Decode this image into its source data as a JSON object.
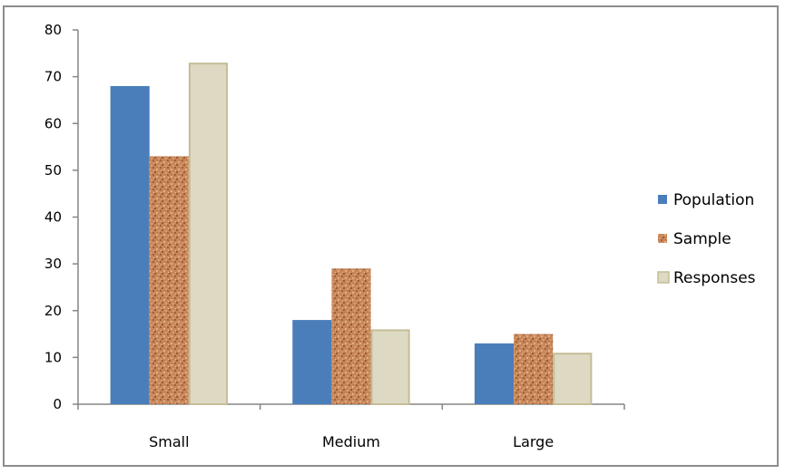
{
  "chart_data": {
    "type": "bar",
    "categories": [
      "Small",
      "Medium",
      "Large"
    ],
    "series": [
      {
        "name": "Population",
        "values": [
          68,
          18,
          13
        ],
        "color": "#4a7ebb",
        "pattern": "solid"
      },
      {
        "name": "Sample",
        "values": [
          53,
          29,
          15
        ],
        "color": "#c08050",
        "pattern": "cork"
      },
      {
        "name": "Responses",
        "values": [
          73,
          16,
          11
        ],
        "color": "#ddd9c3",
        "pattern": "solid-bordered"
      }
    ],
    "ylim": [
      0,
      80
    ],
    "yticks": [
      "0",
      "10",
      "20",
      "30",
      "40",
      "50",
      "60",
      "70",
      "80"
    ],
    "grid": false,
    "legend_position": "right"
  }
}
